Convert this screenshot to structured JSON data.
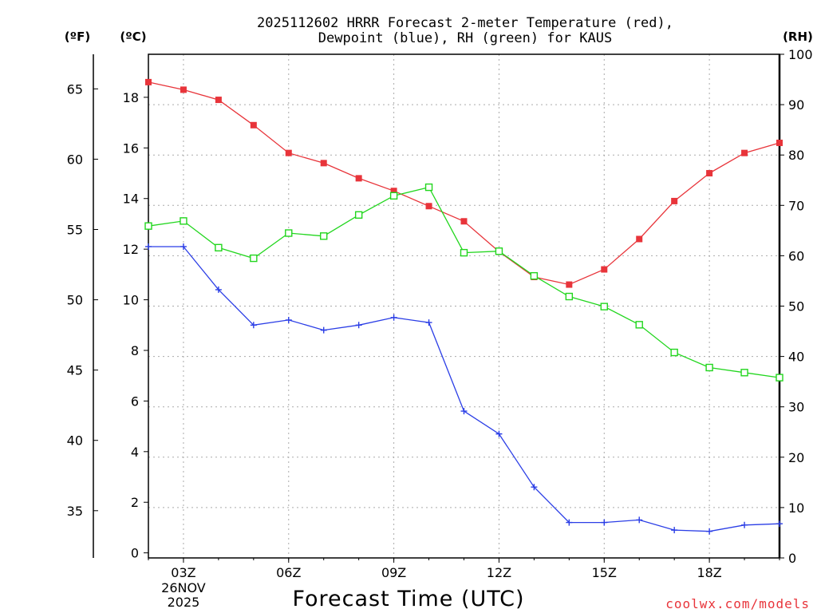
{
  "chart_data": {
    "type": "line",
    "title_line1": "2025112602 HRRR Forecast 2-meter Temperature (red),",
    "title_line2": "Dewpoint (blue), RH (green) for KAUS",
    "xlabel": "Forecast Time (UTC)",
    "credit": "coolwx.com/models",
    "units": {
      "f": "(ºF)",
      "c": "(ºC)",
      "rh": "(RH)"
    },
    "x_hours": [
      2,
      3,
      4,
      5,
      6,
      7,
      8,
      9,
      10,
      11,
      12,
      13,
      14,
      15,
      16,
      17,
      18,
      19,
      20
    ],
    "x_ticks": [
      {
        "hour": 3,
        "label": "03Z",
        "date1": "26NOV",
        "date2": "2025"
      },
      {
        "hour": 6,
        "label": "06Z"
      },
      {
        "hour": 9,
        "label": "09Z"
      },
      {
        "hour": 12,
        "label": "12Z"
      },
      {
        "hour": 15,
        "label": "15Z"
      },
      {
        "hour": 18,
        "label": "18Z"
      }
    ],
    "celsius_axis": {
      "min": -0.2,
      "max": 19.7,
      "ticks": [
        0,
        2,
        4,
        6,
        8,
        10,
        12,
        14,
        16,
        18
      ]
    },
    "fahrenheit_ticks": [
      35,
      40,
      45,
      50,
      55,
      60,
      65
    ],
    "rh_axis": {
      "min": 0,
      "max": 100,
      "ticks": [
        0,
        10,
        20,
        30,
        40,
        50,
        60,
        70,
        80,
        90,
        100
      ]
    },
    "series": [
      {
        "name": "Temperature",
        "axis": "c",
        "color": "#e8343a",
        "marker": "filled-square",
        "values": [
          18.6,
          18.3,
          17.9,
          16.9,
          15.8,
          15.4,
          14.8,
          14.3,
          13.7,
          13.1,
          11.9,
          10.9,
          10.6,
          11.2,
          12.4,
          13.9,
          15.0,
          15.8,
          16.2
        ]
      },
      {
        "name": "Dewpoint",
        "axis": "c",
        "color": "#2b3ee6",
        "marker": "plus",
        "values": [
          12.1,
          12.1,
          10.4,
          9.0,
          9.2,
          8.8,
          9.0,
          9.3,
          9.1,
          5.6,
          4.7,
          2.6,
          1.2,
          1.2,
          1.3,
          0.9,
          0.85,
          1.1,
          1.15
        ]
      },
      {
        "name": "RH",
        "axis": "rh",
        "color": "#22d61e",
        "marker": "open-square",
        "values": [
          65.9,
          66.9,
          61.6,
          59.5,
          64.5,
          63.9,
          68.1,
          71.9,
          73.6,
          60.6,
          60.9,
          56.0,
          51.9,
          49.9,
          46.3,
          40.8,
          37.8,
          36.8,
          35.8
        ]
      }
    ]
  }
}
